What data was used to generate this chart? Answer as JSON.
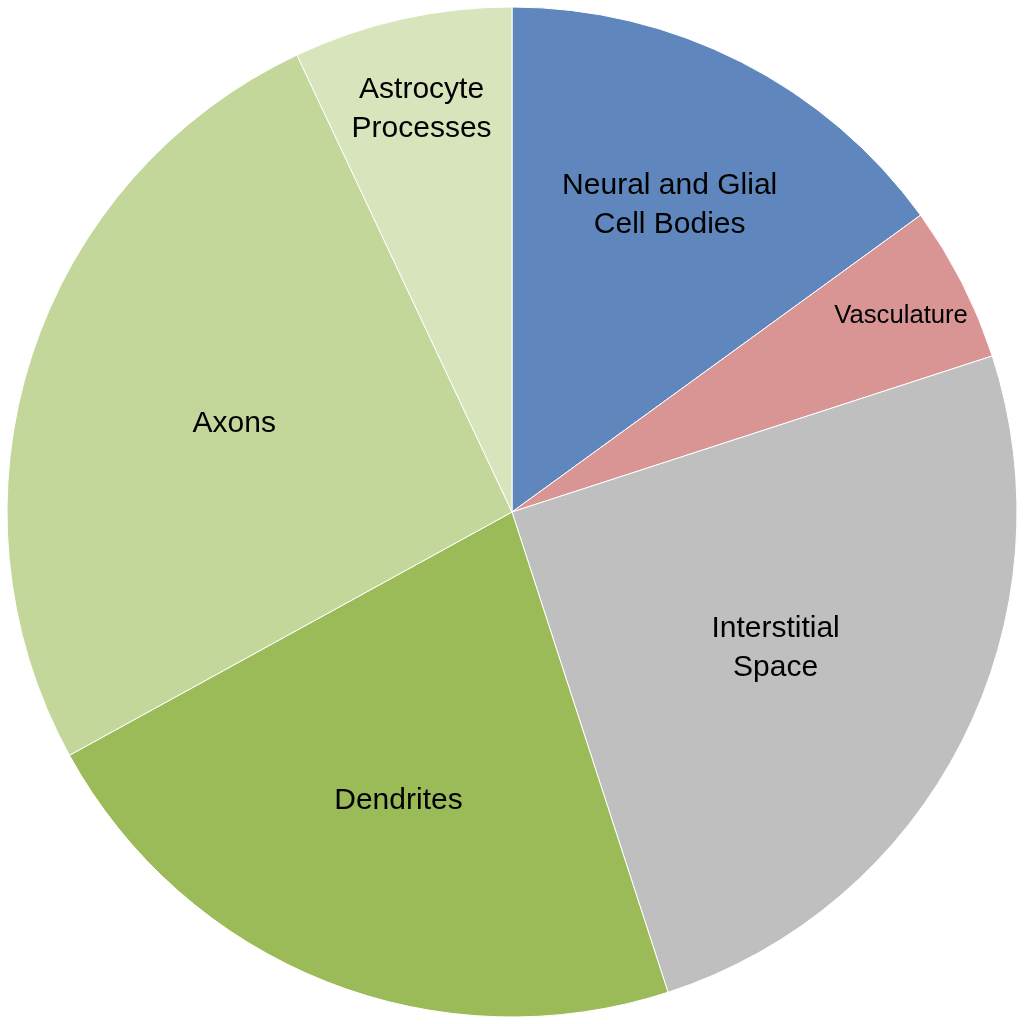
{
  "chart_data": {
    "type": "pie",
    "categories": [
      "Neural and Glial Cell Bodies",
      "Vasculature",
      "Interstitial Space",
      "Dendrites",
      "Axons",
      "Astrocyte Processes"
    ],
    "values": [
      15,
      5,
      25,
      22,
      26,
      7
    ],
    "colors": [
      "#5f86bd",
      "#d99594",
      "#bfbfbf",
      "#9bbb59",
      "#c4d79b",
      "#d8e4bc"
    ],
    "legend": false
  }
}
